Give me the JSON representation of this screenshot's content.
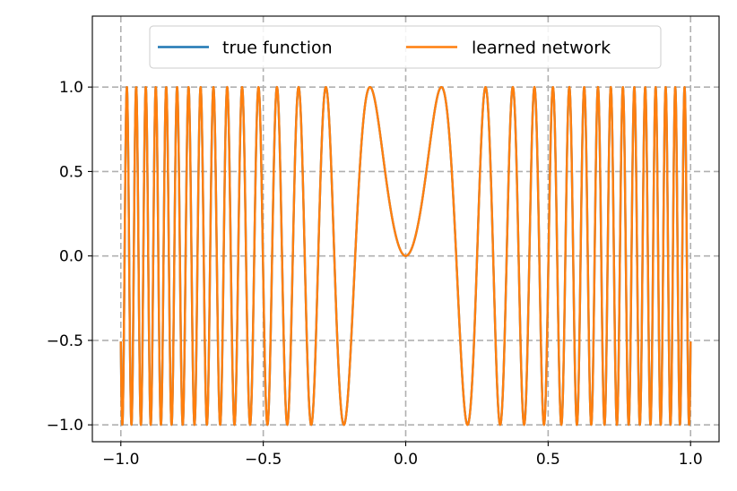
{
  "chart_data": {
    "type": "line",
    "title": "",
    "xlabel": "",
    "ylabel": "",
    "xlim": [
      -1.1,
      1.1
    ],
    "ylim": [
      -1.1,
      1.42
    ],
    "x_ticks": [
      -1.0,
      -0.5,
      0.0,
      0.5,
      1.0
    ],
    "x_tick_labels": [
      "−1.0",
      "−0.5",
      "0.0",
      "0.5",
      "1.0"
    ],
    "y_ticks": [
      -1.0,
      -0.5,
      0.0,
      0.5,
      1.0
    ],
    "y_tick_labels": [
      "−1.0",
      "−0.5",
      "0.0",
      "0.5",
      "1.0"
    ],
    "grid": true,
    "grid_style": "dashed",
    "legend_position": "upper-center",
    "legend_columns": 2,
    "function": "sin(100 * x^2)",
    "x_domain": [
      -1.0,
      1.0
    ],
    "series": [
      {
        "name": "true function",
        "color": "#1f77b4"
      },
      {
        "name": "learned network",
        "color": "#ff7f0e"
      }
    ]
  }
}
